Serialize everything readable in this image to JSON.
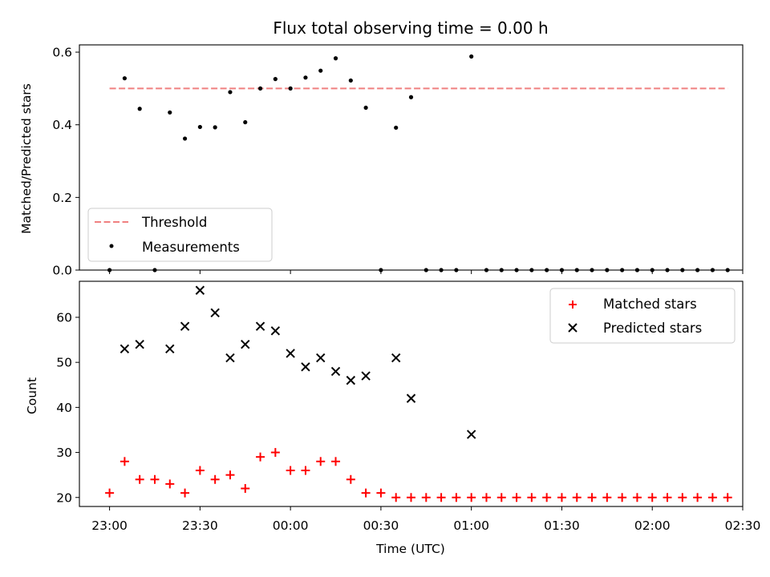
{
  "chart_data": [
    {
      "type": "scatter",
      "title": "Flux total observing time = 0.00 h",
      "xlabel": "",
      "ylabel": "Matched/Predicted stars",
      "ylim": [
        0,
        0.62
      ],
      "yticks": [
        0.0,
        0.2,
        0.4,
        0.6
      ],
      "ytick_labels": [
        "0.0",
        "0.2",
        "0.4",
        "0.6"
      ],
      "xlim_minutes": [
        -10,
        210
      ],
      "threshold": {
        "name": "Threshold",
        "value": 0.5,
        "x_range": [
          "23:00",
          "02:25"
        ],
        "color": "#f08080"
      },
      "series": [
        {
          "name": "Measurements",
          "color": "#000000",
          "x": [
            "23:00",
            "23:05",
            "23:10",
            "23:15",
            "23:20",
            "23:25",
            "23:30",
            "23:35",
            "23:40",
            "23:45",
            "23:50",
            "23:55",
            "00:00",
            "00:05",
            "00:10",
            "00:15",
            "00:20",
            "00:25",
            "00:30",
            "00:35",
            "00:40",
            "00:45",
            "00:50",
            "00:55",
            "01:00",
            "01:05",
            "01:10",
            "01:15",
            "01:20",
            "01:25",
            "01:30",
            "01:35",
            "01:40",
            "01:45",
            "01:50",
            "01:55",
            "02:00",
            "02:05",
            "02:10",
            "02:15",
            "02:20",
            "02:25"
          ],
          "y": [
            0.0,
            0.528,
            0.444,
            0.0,
            0.434,
            0.362,
            0.394,
            0.393,
            0.49,
            0.407,
            0.5,
            0.526,
            0.5,
            0.53,
            0.549,
            0.583,
            0.522,
            0.447,
            0.0,
            0.392,
            0.476,
            0.0,
            0.0,
            0.0,
            0.588,
            0.0,
            0.0,
            0.0,
            0.0,
            0.0,
            0.0,
            0.0,
            0.0,
            0.0,
            0.0,
            0.0,
            0.0,
            0.0,
            0.0,
            0.0,
            0.0,
            0.0
          ]
        }
      ],
      "legend": "lower-left"
    },
    {
      "type": "scatter",
      "title": "",
      "xlabel": "Time (UTC)",
      "ylabel": "Count",
      "ylim": [
        18,
        68
      ],
      "yticks": [
        20,
        30,
        40,
        50,
        60
      ],
      "ytick_labels": [
        "20",
        "30",
        "40",
        "50",
        "60"
      ],
      "xlim_minutes": [
        -10,
        210
      ],
      "xticks": [
        "23:00",
        "23:30",
        "00:00",
        "00:30",
        "01:00",
        "01:30",
        "02:00",
        "02:30"
      ],
      "series": [
        {
          "name": "Matched stars",
          "marker": "plus",
          "color": "#ff0000",
          "x": [
            "23:00",
            "23:05",
            "23:10",
            "23:15",
            "23:20",
            "23:25",
            "23:30",
            "23:35",
            "23:40",
            "23:45",
            "23:50",
            "23:55",
            "00:00",
            "00:05",
            "00:10",
            "00:15",
            "00:20",
            "00:25",
            "00:30",
            "00:35",
            "00:40",
            "00:45",
            "00:50",
            "00:55",
            "01:00",
            "01:05",
            "01:10",
            "01:15",
            "01:20",
            "01:25",
            "01:30",
            "01:35",
            "01:40",
            "01:45",
            "01:50",
            "01:55",
            "02:00",
            "02:05",
            "02:10",
            "02:15",
            "02:20",
            "02:25"
          ],
          "y": [
            21,
            28,
            24,
            24,
            23,
            21,
            26,
            24,
            25,
            22,
            29,
            30,
            26,
            26,
            28,
            28,
            24,
            21,
            21,
            20,
            20,
            20,
            20,
            20,
            20,
            20,
            20,
            20,
            20,
            20,
            20,
            20,
            20,
            20,
            20,
            20,
            20,
            20,
            20,
            20,
            20,
            20
          ]
        },
        {
          "name": "Predicted stars",
          "marker": "x",
          "color": "#000000",
          "x": [
            "23:05",
            "23:10",
            "23:20",
            "23:25",
            "23:30",
            "23:35",
            "23:40",
            "23:45",
            "23:50",
            "23:55",
            "00:00",
            "00:05",
            "00:10",
            "00:15",
            "00:20",
            "00:25",
            "00:35",
            "00:40",
            "01:00"
          ],
          "y": [
            53,
            54,
            53,
            58,
            66,
            61,
            51,
            54,
            58,
            57,
            52,
            49,
            51,
            48,
            46,
            47,
            51,
            42,
            34
          ]
        }
      ],
      "legend": "upper-right"
    }
  ]
}
